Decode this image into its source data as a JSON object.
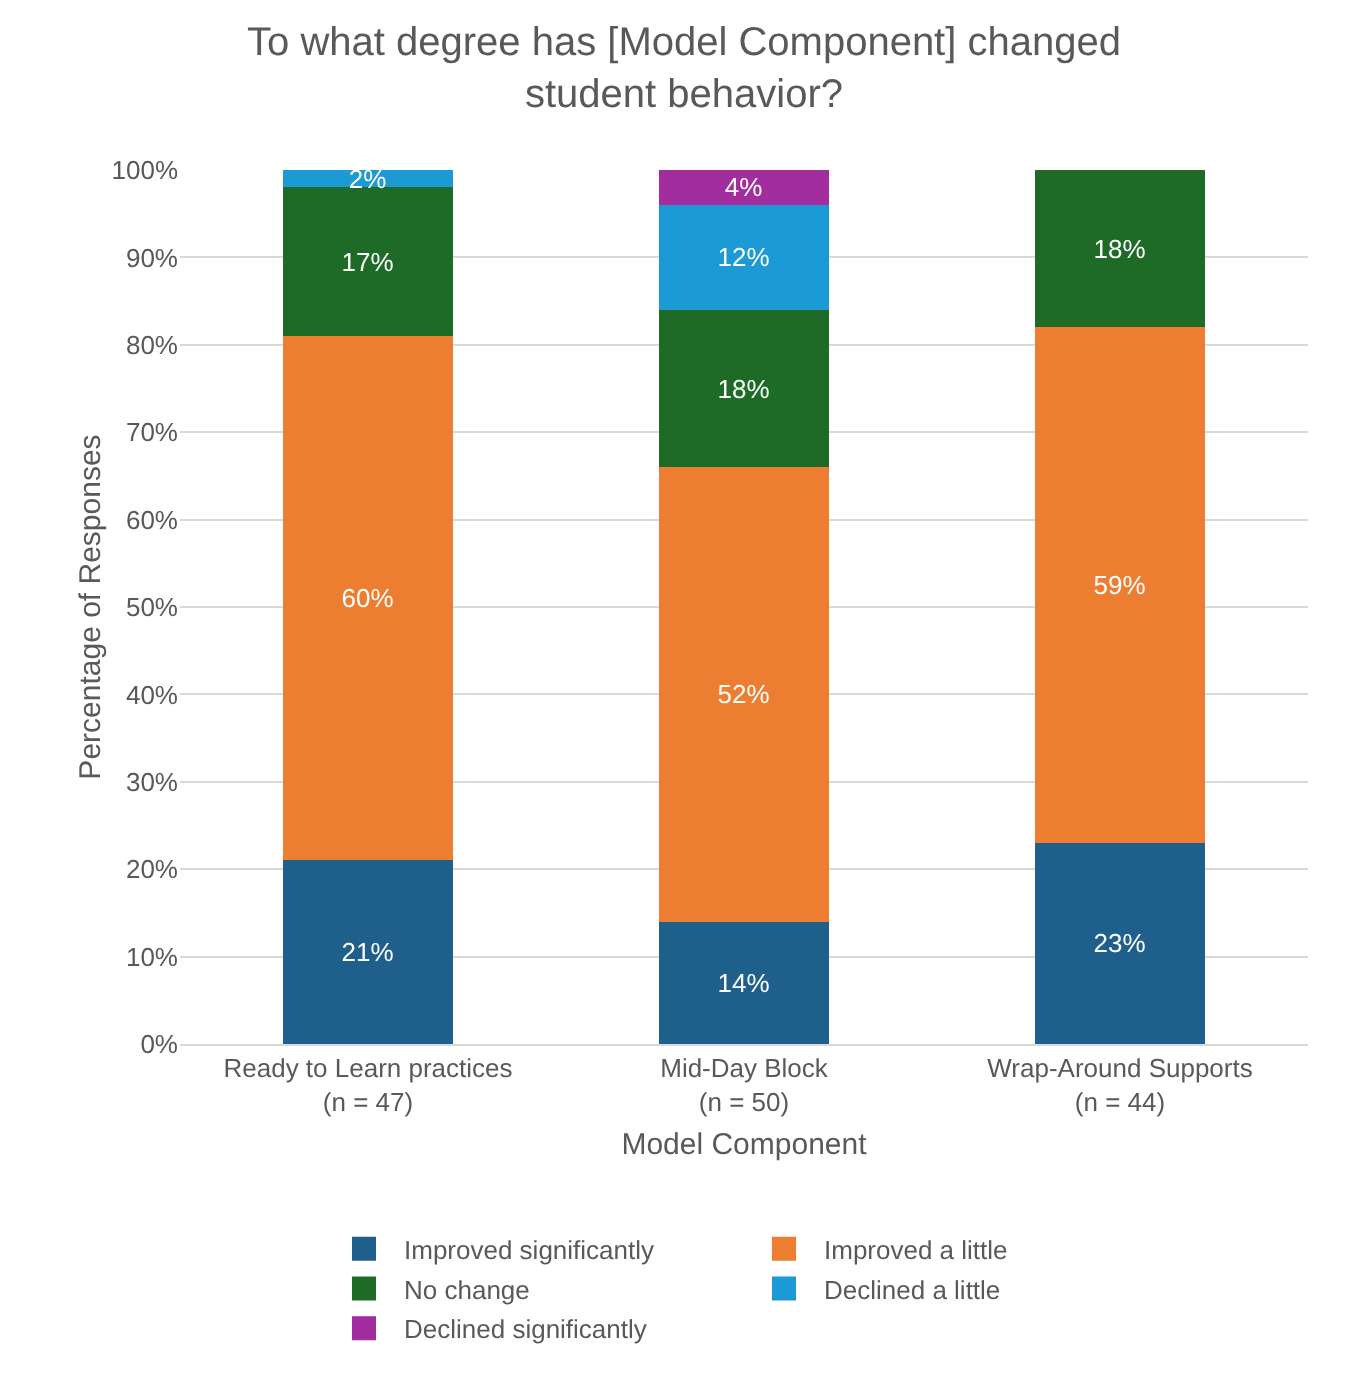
{
  "chart_data": {
    "type": "bar",
    "stacked": true,
    "title": "To what degree has [Model Component] changed student behavior?",
    "xlabel": "Model Component",
    "ylabel": "Percentage of Responses",
    "categories": [
      "Ready to Learn practices\n(n = 47)",
      "Mid-Day Block\n(n = 50)",
      "Wrap-Around Supports\n(n = 44)"
    ],
    "series": [
      {
        "name": "Improved significantly",
        "color": "#1f5f8b",
        "values": [
          21,
          14,
          23
        ],
        "value_labels": [
          "21%",
          "14%",
          "23%"
        ]
      },
      {
        "name": "Improved a little",
        "color": "#ed7d31",
        "values": [
          60,
          52,
          59
        ],
        "value_labels": [
          "60%",
          "52%",
          "59%"
        ]
      },
      {
        "name": "No change",
        "color": "#1e6b28",
        "values": [
          17,
          18,
          18
        ],
        "value_labels": [
          "17%",
          "18%",
          "18%"
        ]
      },
      {
        "name": "Declined a little",
        "color": "#1b9ad6",
        "values": [
          2,
          12,
          null
        ],
        "value_labels": [
          "2%",
          "12%",
          null
        ]
      },
      {
        "name": "Declined significantly",
        "color": "#a12d9e",
        "values": [
          null,
          4,
          null
        ],
        "value_labels": [
          null,
          "4%",
          null
        ]
      }
    ],
    "ylim": [
      0,
      100
    ],
    "yticks": [
      {
        "value": 0,
        "label": "0%"
      },
      {
        "value": 10,
        "label": "10%"
      },
      {
        "value": 20,
        "label": "20%"
      },
      {
        "value": 30,
        "label": "30%"
      },
      {
        "value": 40,
        "label": "40%"
      },
      {
        "value": 50,
        "label": "50%"
      },
      {
        "value": 60,
        "label": "60%"
      },
      {
        "value": 70,
        "label": "70%"
      },
      {
        "value": 80,
        "label": "80%"
      },
      {
        "value": 90,
        "label": "90%"
      },
      {
        "value": 100,
        "label": "100%"
      }
    ],
    "grid": "y",
    "legend": "bottom"
  }
}
